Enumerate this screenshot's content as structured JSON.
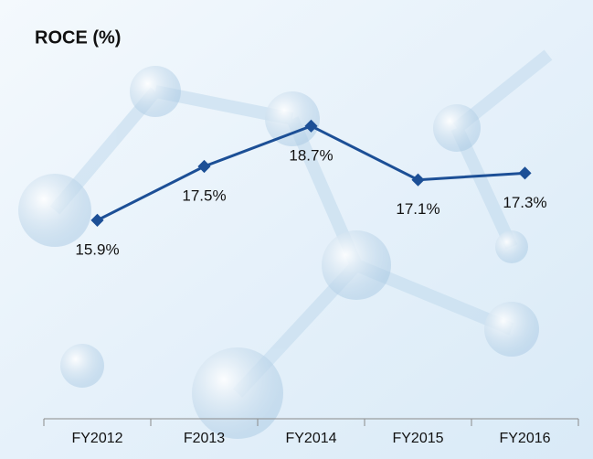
{
  "chart_data": {
    "type": "line",
    "title": "ROCE (%)",
    "categories": [
      "FY2012",
      "F2013",
      "FY2014",
      "FY2015",
      "FY2016"
    ],
    "series": [
      {
        "name": "ROCE",
        "color": "#1c4f96",
        "values": [
          15.9,
          17.5,
          18.7,
          17.1,
          17.3
        ],
        "value_labels": [
          "15.9%",
          "17.5%",
          "18.7%",
          "17.1%",
          "17.3%"
        ]
      }
    ],
    "ylim": [
      10,
      20
    ]
  }
}
